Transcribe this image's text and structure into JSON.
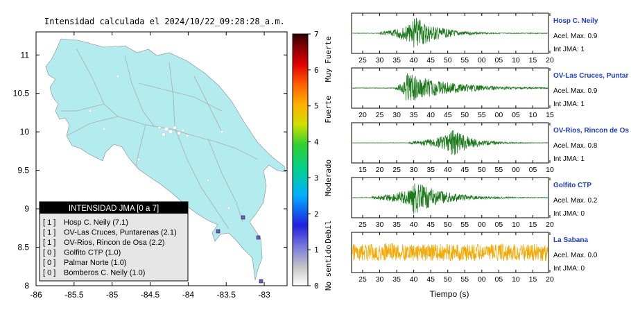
{
  "map": {
    "title": "Intensidad calculada el 2024/10/22_09:28:28_a.m.",
    "lon_ticks": [
      "-86",
      "-85.5",
      "-85",
      "-84.5",
      "-84",
      "-83.5",
      "-83"
    ],
    "lat_ticks": [
      "11",
      "10.5",
      "10",
      "9.5",
      "9",
      "8.5",
      "8"
    ],
    "xlim": [
      -86,
      -82.7
    ],
    "ylim": [
      8,
      11.3
    ],
    "legend": {
      "title": "INTENSIDAD JMA [0 a 7]",
      "entries": [
        {
          "jma": "[ 1 ]",
          "station": "Hosp C. Neily (7.1)"
        },
        {
          "jma": "[ 1 ]",
          "station": "OV-Las Cruces, Puntarenas (2.1)"
        },
        {
          "jma": "[ 1 ]",
          "station": "OV-Rios, Rincon de Osa (2.2)"
        },
        {
          "jma": "[ 0 ]",
          "station": "Golfito CTP (1.0)"
        },
        {
          "jma": "[ 0 ]",
          "station": "Palmar Norte (1.0)"
        },
        {
          "jma": "[ 0 ]",
          "station": "Bomberos C. Neily (1.0)"
        }
      ]
    },
    "colors": {
      "land": "#b3ecee",
      "roads": "#b0b0b0",
      "station": "#6a5acd"
    }
  },
  "colorbar": {
    "ticks": [
      "0",
      "1",
      "2",
      "3",
      "4",
      "5",
      "6",
      "7"
    ],
    "labels": [
      "No sentido",
      "Debil",
      "Moderado",
      "Fuerte",
      "Muy Fuerte"
    ]
  },
  "seismograms": [
    {
      "station": "Hosp C. Neily",
      "acel": "Acel. Max. 0.9",
      "int": "Int JMA: 1",
      "ticks": [
        "25",
        "30",
        "35",
        "40",
        "45",
        "50",
        "55",
        "00",
        "05",
        "10",
        "15",
        "20"
      ],
      "onset": 0.14,
      "peak": 0.31,
      "decay": 0.12,
      "amp": 1.0,
      "noise": 0.02,
      "color": "#1a7a1a"
    },
    {
      "station": "OV-Las Cruces, Puntar",
      "acel": "Acel. Max. 0.9",
      "int": "Int JMA: 1",
      "ticks": [
        "20",
        "25",
        "30",
        "35",
        "40",
        "45",
        "50",
        "55",
        "00",
        "05",
        "10",
        "15"
      ],
      "onset": 0.22,
      "peak": 0.27,
      "decay": 0.22,
      "amp": 0.85,
      "noise": 0.02,
      "color": "#1a7a1a"
    },
    {
      "station": "OV-Rios, Rincon de Os",
      "acel": "Acel. Max. 0.8",
      "int": "Int JMA: 1",
      "ticks": [
        "15",
        "20",
        "25",
        "30",
        "35",
        "40",
        "45",
        "50",
        "55",
        "00",
        "05",
        "10"
      ],
      "onset": 0.29,
      "peak": 0.5,
      "decay": 0.1,
      "amp": 0.85,
      "noise": 0.01,
      "color": "#1a7a1a"
    },
    {
      "station": "Golfito CTP",
      "acel": "Acel. Max. 0.2",
      "int": "Int JMA: 0",
      "ticks": [
        "25",
        "30",
        "35",
        "40",
        "45",
        "50",
        "55",
        "00",
        "05",
        "10",
        "15",
        "20"
      ],
      "onset": 0.1,
      "peak": 0.31,
      "decay": 0.15,
      "amp": 0.95,
      "noise": 0.02,
      "color": "#1a7a1a"
    },
    {
      "station": "La Sabana",
      "acel": "Acel. Max. 0.0",
      "int": "Int JMA: 0",
      "ticks": [
        "25",
        "30",
        "35",
        "40",
        "45",
        "50",
        "55",
        "00",
        "05",
        "10",
        "15",
        "20"
      ],
      "onset": 0.0,
      "peak": 0.15,
      "decay": 0.5,
      "amp": 0.55,
      "noise": 0.45,
      "color": "#f5a800"
    }
  ],
  "xlabel": "Tiempo (s)",
  "chart_data": [
    {
      "type": "scatter",
      "title": "Intensidad calculada el 2024/10/22_09:28:28_a.m.",
      "xlabel": "",
      "ylabel": "",
      "xlim": [
        -86,
        -82.7
      ],
      "ylim": [
        8,
        11.3
      ]
    },
    {
      "type": "line",
      "xlabel": "Tiempo (s)",
      "series": [
        {
          "name": "Hosp C. Neily",
          "peak_accel": 0.9,
          "jma": 1
        },
        {
          "name": "OV-Las Cruces, Puntar",
          "peak_accel": 0.9,
          "jma": 1
        },
        {
          "name": "OV-Rios, Rincon de Os",
          "peak_accel": 0.8,
          "jma": 1
        },
        {
          "name": "Golfito CTP",
          "peak_accel": 0.2,
          "jma": 0
        },
        {
          "name": "La Sabana",
          "peak_accel": 0.0,
          "jma": 0
        }
      ]
    }
  ]
}
